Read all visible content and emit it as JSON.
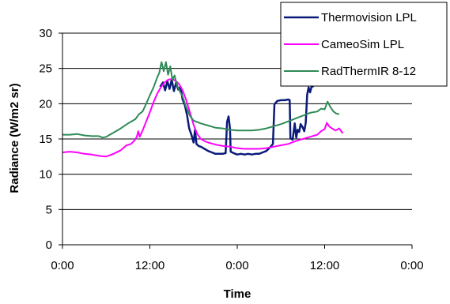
{
  "chart_data": {
    "type": "line",
    "xlabel": "Time",
    "ylabel": "Radiance (W/m2 sr)",
    "x_unit": "hours",
    "xlim": [
      0,
      48
    ],
    "ylim": [
      0,
      30
    ],
    "y_ticks": [
      0,
      5,
      10,
      15,
      20,
      25,
      30
    ],
    "x_ticks": [
      {
        "value": 0,
        "label": "0:00"
      },
      {
        "value": 12,
        "label": "12:00"
      },
      {
        "value": 24,
        "label": "0:00"
      },
      {
        "value": 36,
        "label": "12:00"
      },
      {
        "value": 48,
        "label": "0:00"
      }
    ],
    "grid": "horizontal",
    "legend_position": "top-right",
    "series": [
      {
        "name": "Thermovision LPL",
        "color": "#0a1a7a",
        "points": [
          [
            13.4,
            22.4
          ],
          [
            13.8,
            23.0
          ],
          [
            14.1,
            21.9
          ],
          [
            14.4,
            23.2
          ],
          [
            14.7,
            22.1
          ],
          [
            15.0,
            23.4
          ],
          [
            15.3,
            21.8
          ],
          [
            15.6,
            23.0
          ],
          [
            15.9,
            22.0
          ],
          [
            16.2,
            22.4
          ],
          [
            16.5,
            20.6
          ],
          [
            16.8,
            19.8
          ],
          [
            17.1,
            18.4
          ],
          [
            17.4,
            16.5
          ],
          [
            17.7,
            15.6
          ],
          [
            18.0,
            14.5
          ],
          [
            18.2,
            16.3
          ],
          [
            18.4,
            14.3
          ],
          [
            18.7,
            14.0
          ],
          [
            19.0,
            13.9
          ],
          [
            19.5,
            13.6
          ],
          [
            20.0,
            13.3
          ],
          [
            20.5,
            13.1
          ],
          [
            21.0,
            12.9
          ],
          [
            21.5,
            12.9
          ],
          [
            22.0,
            12.9
          ],
          [
            22.4,
            13.0
          ],
          [
            22.6,
            17.4
          ],
          [
            22.8,
            18.2
          ],
          [
            23.0,
            16.5
          ],
          [
            23.1,
            13.2
          ],
          [
            23.5,
            13.0
          ],
          [
            24.0,
            12.8
          ],
          [
            24.5,
            12.9
          ],
          [
            25.0,
            12.8
          ],
          [
            25.5,
            12.9
          ],
          [
            26.0,
            12.8
          ],
          [
            26.5,
            12.9
          ],
          [
            27.0,
            12.9
          ],
          [
            27.5,
            13.1
          ],
          [
            28.0,
            13.3
          ],
          [
            28.5,
            13.8
          ],
          [
            28.9,
            14.3
          ],
          [
            29.1,
            19.9
          ],
          [
            29.5,
            20.4
          ],
          [
            30.0,
            20.5
          ],
          [
            30.5,
            20.5
          ],
          [
            31.0,
            20.6
          ],
          [
            31.2,
            20.5
          ],
          [
            31.3,
            15.1
          ],
          [
            31.6,
            14.9
          ],
          [
            31.9,
            17.2
          ],
          [
            32.1,
            15.2
          ],
          [
            32.3,
            16.3
          ],
          [
            32.5,
            16.0
          ],
          [
            32.7,
            17.1
          ],
          [
            33.0,
            16.6
          ],
          [
            33.2,
            16.1
          ],
          [
            33.4,
            17.3
          ],
          [
            33.6,
            21.3
          ],
          [
            33.8,
            22.3
          ],
          [
            34.0,
            21.6
          ],
          [
            34.2,
            22.4
          ],
          [
            34.5,
            22.5
          ]
        ]
      },
      {
        "name": "CameoSim LPL",
        "color": "#ff00ff",
        "points": [
          [
            0.0,
            13.1
          ],
          [
            1.0,
            13.2
          ],
          [
            2.0,
            13.1
          ],
          [
            3.0,
            12.9
          ],
          [
            4.0,
            12.8
          ],
          [
            5.0,
            12.6
          ],
          [
            6.0,
            12.5
          ],
          [
            7.0,
            12.9
          ],
          [
            8.0,
            13.4
          ],
          [
            8.8,
            14.1
          ],
          [
            9.4,
            14.3
          ],
          [
            9.9,
            14.8
          ],
          [
            10.2,
            15.3
          ],
          [
            10.4,
            16.1
          ],
          [
            10.6,
            15.3
          ],
          [
            11.0,
            16.2
          ],
          [
            11.5,
            17.5
          ],
          [
            12.0,
            18.8
          ],
          [
            12.5,
            20.2
          ],
          [
            13.0,
            21.4
          ],
          [
            13.5,
            22.3
          ],
          [
            14.0,
            23.0
          ],
          [
            14.5,
            23.4
          ],
          [
            15.0,
            23.5
          ],
          [
            15.5,
            23.3
          ],
          [
            16.0,
            22.8
          ],
          [
            16.5,
            21.9
          ],
          [
            17.0,
            20.5
          ],
          [
            17.5,
            18.8
          ],
          [
            18.0,
            17.0
          ],
          [
            18.5,
            15.7
          ],
          [
            19.0,
            15.0
          ],
          [
            19.5,
            14.7
          ],
          [
            20.0,
            14.5
          ],
          [
            21.0,
            14.2
          ],
          [
            22.0,
            14.0
          ],
          [
            23.0,
            13.9
          ],
          [
            24.0,
            13.7
          ],
          [
            25.0,
            13.6
          ],
          [
            26.0,
            13.6
          ],
          [
            27.0,
            13.6
          ],
          [
            28.0,
            13.7
          ],
          [
            29.0,
            13.9
          ],
          [
            30.0,
            14.1
          ],
          [
            31.0,
            14.3
          ],
          [
            32.0,
            14.7
          ],
          [
            33.0,
            15.0
          ],
          [
            34.0,
            15.3
          ],
          [
            35.0,
            15.6
          ],
          [
            35.5,
            16.1
          ],
          [
            36.0,
            16.4
          ],
          [
            36.3,
            17.3
          ],
          [
            36.6,
            16.8
          ],
          [
            37.0,
            16.5
          ],
          [
            37.5,
            16.2
          ],
          [
            38.0,
            16.5
          ],
          [
            38.5,
            15.8
          ]
        ]
      },
      {
        "name": "RadThermIR 8-12",
        "color": "#2e8b57",
        "points": [
          [
            0.0,
            15.6
          ],
          [
            1.0,
            15.6
          ],
          [
            2.0,
            15.7
          ],
          [
            3.0,
            15.5
          ],
          [
            4.0,
            15.4
          ],
          [
            5.0,
            15.4
          ],
          [
            5.5,
            15.2
          ],
          [
            6.0,
            15.3
          ],
          [
            6.5,
            15.6
          ],
          [
            7.0,
            15.9
          ],
          [
            8.0,
            16.5
          ],
          [
            9.0,
            17.2
          ],
          [
            10.0,
            17.8
          ],
          [
            10.5,
            18.5
          ],
          [
            11.0,
            18.9
          ],
          [
            11.5,
            20.0
          ],
          [
            12.0,
            21.2
          ],
          [
            12.5,
            22.3
          ],
          [
            13.0,
            23.7
          ],
          [
            13.3,
            24.4
          ],
          [
            13.6,
            25.9
          ],
          [
            13.9,
            24.6
          ],
          [
            14.2,
            25.9
          ],
          [
            14.5,
            24.1
          ],
          [
            14.8,
            25.3
          ],
          [
            15.1,
            23.4
          ],
          [
            15.4,
            24.0
          ],
          [
            15.7,
            22.6
          ],
          [
            16.0,
            22.0
          ],
          [
            16.5,
            21.0
          ],
          [
            17.0,
            19.5
          ],
          [
            17.5,
            18.3
          ],
          [
            18.0,
            17.6
          ],
          [
            19.0,
            17.2
          ],
          [
            20.0,
            16.9
          ],
          [
            21.0,
            16.6
          ],
          [
            22.0,
            16.5
          ],
          [
            23.0,
            16.3
          ],
          [
            24.0,
            16.2
          ],
          [
            25.0,
            16.2
          ],
          [
            26.0,
            16.2
          ],
          [
            27.0,
            16.3
          ],
          [
            28.0,
            16.5
          ],
          [
            29.0,
            16.8
          ],
          [
            30.0,
            17.1
          ],
          [
            31.0,
            17.5
          ],
          [
            32.0,
            17.9
          ],
          [
            33.0,
            18.3
          ],
          [
            34.0,
            18.7
          ],
          [
            35.0,
            18.9
          ],
          [
            35.5,
            19.3
          ],
          [
            36.0,
            19.2
          ],
          [
            36.4,
            20.3
          ],
          [
            36.8,
            19.5
          ],
          [
            37.2,
            18.9
          ],
          [
            37.6,
            18.6
          ],
          [
            38.0,
            18.5
          ]
        ]
      }
    ]
  }
}
